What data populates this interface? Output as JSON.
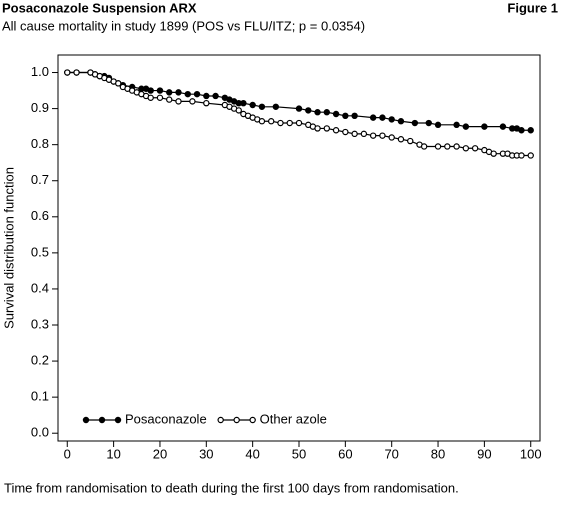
{
  "chart_data": {
    "type": "line",
    "title": "Posaconazole Suspension ARX",
    "figure_label": "Figure 1",
    "subtitle": "All cause mortality in study 1899 (POS vs FLU/ITZ; p = 0.0354)",
    "ylabel": "Survival distribution function",
    "xlabel": "Time from randomisation to death during the first 100 days from randomisation.",
    "xlim": [
      -2,
      102
    ],
    "ylim": [
      -0.0216,
      1.0486
    ],
    "xticks": [
      0,
      10,
      20,
      30,
      40,
      50,
      60,
      70,
      80,
      90,
      100
    ],
    "yticks": [
      {
        "value": 0,
        "label": "0.0"
      },
      0.1,
      0.2,
      0.3,
      0.4,
      0.5,
      0.6,
      0.7,
      0.8,
      0.9,
      {
        "value": 1,
        "label": "1.0"
      }
    ],
    "legend": "lower left",
    "series": [
      {
        "name": "Posaconazole",
        "color": "#000000",
        "marker": "filled",
        "x": [
          0,
          2,
          5,
          6,
          7,
          8,
          9,
          10,
          11,
          12,
          14,
          16,
          17,
          18,
          20,
          22,
          24,
          26,
          28,
          30,
          32,
          34,
          35,
          36,
          37,
          38,
          40,
          42,
          45,
          50,
          52,
          54,
          56,
          58,
          60,
          62,
          66,
          68,
          70,
          72,
          75,
          78,
          80,
          84,
          86,
          90,
          94,
          96,
          97,
          98,
          100
        ],
        "values": [
          1.0,
          1.0,
          1.0,
          0.995,
          0.99,
          0.99,
          0.985,
          0.975,
          0.97,
          0.965,
          0.96,
          0.955,
          0.955,
          0.95,
          0.95,
          0.945,
          0.945,
          0.94,
          0.94,
          0.935,
          0.935,
          0.93,
          0.925,
          0.92,
          0.915,
          0.915,
          0.91,
          0.905,
          0.905,
          0.9,
          0.895,
          0.89,
          0.89,
          0.885,
          0.88,
          0.88,
          0.875,
          0.875,
          0.87,
          0.865,
          0.86,
          0.86,
          0.855,
          0.855,
          0.85,
          0.85,
          0.85,
          0.845,
          0.845,
          0.84,
          0.84
        ]
      },
      {
        "name": "Other azole",
        "color": "#000000",
        "marker": "open",
        "x": [
          0,
          2,
          5,
          6,
          7,
          8,
          9,
          10,
          11,
          12,
          13,
          14,
          15,
          16,
          17,
          18,
          20,
          22,
          24,
          27,
          30,
          34,
          35,
          36,
          37,
          38,
          39,
          40,
          41,
          42,
          44,
          46,
          48,
          50,
          52,
          53,
          54,
          56,
          58,
          60,
          62,
          64,
          66,
          68,
          70,
          72,
          74,
          76,
          77,
          80,
          82,
          84,
          86,
          88,
          90,
          91,
          92,
          94,
          95,
          96,
          97,
          98,
          100
        ],
        "values": [
          1.0,
          1.0,
          1.0,
          0.995,
          0.99,
          0.985,
          0.98,
          0.975,
          0.97,
          0.96,
          0.955,
          0.95,
          0.945,
          0.94,
          0.935,
          0.93,
          0.93,
          0.925,
          0.92,
          0.92,
          0.915,
          0.91,
          0.905,
          0.9,
          0.895,
          0.885,
          0.88,
          0.875,
          0.87,
          0.865,
          0.865,
          0.86,
          0.86,
          0.86,
          0.855,
          0.85,
          0.845,
          0.845,
          0.84,
          0.835,
          0.83,
          0.83,
          0.825,
          0.825,
          0.82,
          0.815,
          0.81,
          0.8,
          0.795,
          0.795,
          0.795,
          0.795,
          0.79,
          0.79,
          0.785,
          0.78,
          0.775,
          0.775,
          0.775,
          0.77,
          0.77,
          0.77,
          0.77
        ]
      }
    ]
  }
}
